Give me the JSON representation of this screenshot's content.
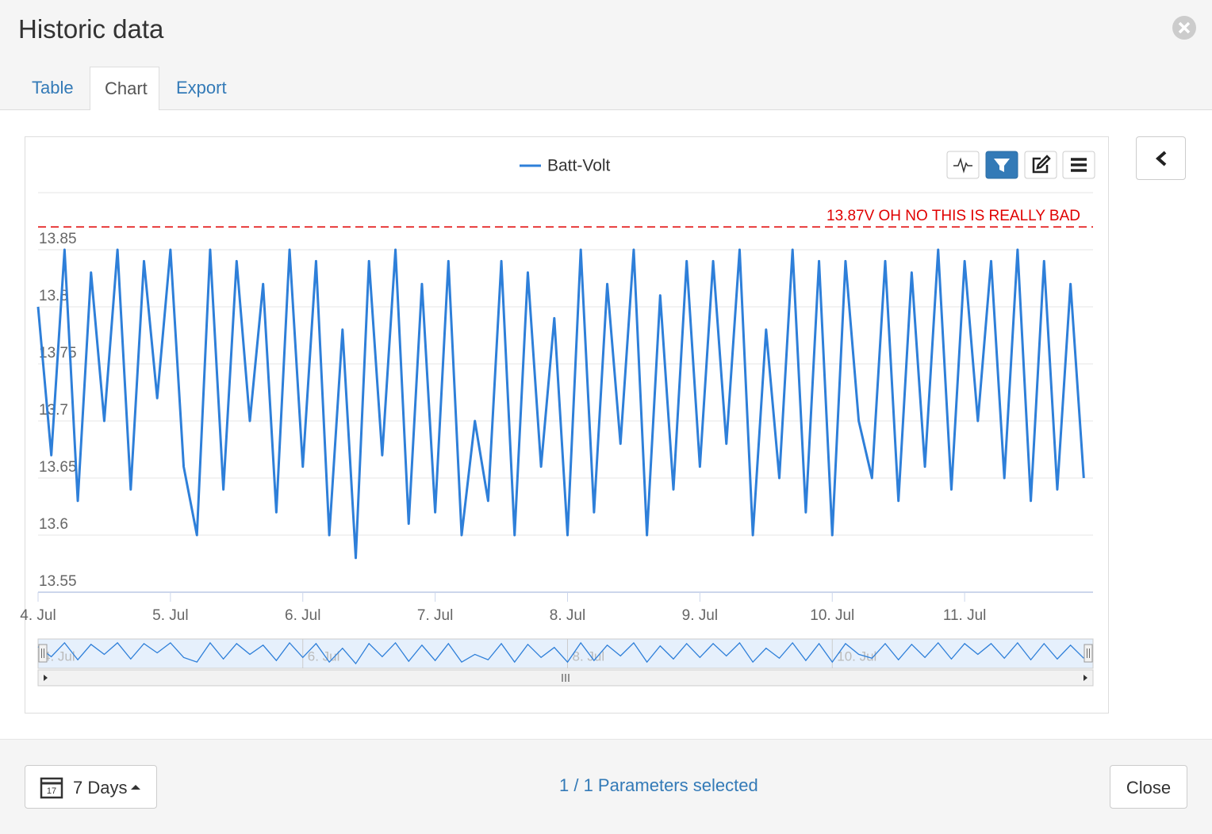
{
  "ui": {
    "title": "Historic data",
    "tabs": [
      "Table",
      "Chart",
      "Export"
    ],
    "range_button": "7 Days",
    "selection_status": "1 / 1 Parameters selected",
    "close_button": "Close"
  },
  "chart_data": {
    "type": "line",
    "legend": "top-center",
    "series": [
      {
        "name": "Batt-Volt",
        "color": "#2e7fd9",
        "x": [
          4.0,
          4.1,
          4.2,
          4.3,
          4.4,
          4.5,
          4.6,
          4.7,
          4.8,
          4.9,
          5.0,
          5.1,
          5.2,
          5.3,
          5.4,
          5.5,
          5.6,
          5.7,
          5.8,
          5.9,
          6.0,
          6.1,
          6.2,
          6.3,
          6.4,
          6.5,
          6.6,
          6.7,
          6.8,
          6.9,
          7.0,
          7.1,
          7.2,
          7.3,
          7.4,
          7.5,
          7.6,
          7.7,
          7.8,
          7.9,
          8.0,
          8.1,
          8.2,
          8.3,
          8.4,
          8.5,
          8.6,
          8.7,
          8.8,
          8.9,
          9.0,
          9.1,
          9.2,
          9.3,
          9.4,
          9.5,
          9.6,
          9.7,
          9.8,
          9.9,
          10.0,
          10.1,
          10.2,
          10.3,
          10.4,
          10.5,
          10.6,
          10.7,
          10.8,
          10.9,
          11.0,
          11.1,
          11.2,
          11.3,
          11.4,
          11.5,
          11.6,
          11.7,
          11.8,
          11.9
        ],
        "values": [
          13.8,
          13.67,
          13.85,
          13.63,
          13.83,
          13.7,
          13.85,
          13.64,
          13.84,
          13.72,
          13.85,
          13.66,
          13.6,
          13.85,
          13.64,
          13.84,
          13.7,
          13.82,
          13.62,
          13.85,
          13.66,
          13.84,
          13.6,
          13.78,
          13.58,
          13.84,
          13.67,
          13.85,
          13.61,
          13.82,
          13.62,
          13.84,
          13.6,
          13.7,
          13.63,
          13.84,
          13.6,
          13.83,
          13.66,
          13.79,
          13.6,
          13.85,
          13.62,
          13.82,
          13.68,
          13.85,
          13.6,
          13.81,
          13.64,
          13.84,
          13.66,
          13.84,
          13.68,
          13.85,
          13.6,
          13.78,
          13.65,
          13.85,
          13.62,
          13.84,
          13.6,
          13.84,
          13.7,
          13.65,
          13.84,
          13.63,
          13.83,
          13.66,
          13.85,
          13.64,
          13.84,
          13.7,
          13.84,
          13.65,
          13.85,
          13.63,
          13.84,
          13.64,
          13.82,
          13.65
        ]
      }
    ],
    "xlim": [
      4,
      11.97
    ],
    "xticks": [
      {
        "value": 4,
        "label": "4. Jul"
      },
      {
        "value": 5,
        "label": "5. Jul"
      },
      {
        "value": 6,
        "label": "6. Jul"
      },
      {
        "value": 7,
        "label": "7. Jul"
      },
      {
        "value": 8,
        "label": "8. Jul"
      },
      {
        "value": 9,
        "label": "9. Jul"
      },
      {
        "value": 10,
        "label": "10. Jul"
      },
      {
        "value": 11,
        "label": "11. Jul"
      }
    ],
    "ylim": [
      13.55,
      13.9
    ],
    "yticks": [
      13.55,
      13.6,
      13.65,
      13.7,
      13.75,
      13.8,
      13.85
    ],
    "grid": true,
    "plot_lines": [
      {
        "value": 13.87,
        "label": "13.87V OH NO THIS IS REALLY BAD",
        "color": "#e00000"
      }
    ]
  }
}
